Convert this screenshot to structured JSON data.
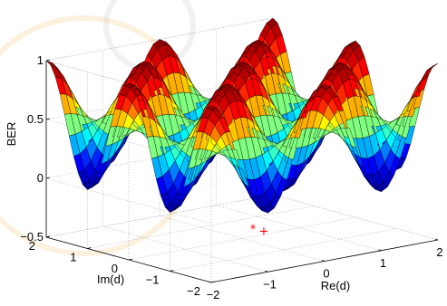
{
  "chart_data": {
    "type": "surface",
    "title": "",
    "xlabel": "Re(d)",
    "ylabel": "Im(d)",
    "zlabel": "BER",
    "xlim": [
      -2,
      2
    ],
    "ylim": [
      -2,
      2
    ],
    "zlim": [
      -0.5,
      1
    ],
    "xticks": [
      "−2",
      "−1",
      "0",
      "1",
      "2"
    ],
    "yticks": [
      "−2",
      "−1",
      "0",
      "1",
      "2"
    ],
    "zticks": [
      "−0.5",
      "0",
      "0.5",
      "1"
    ],
    "colormap": [
      "#00008f",
      "#0000ff",
      "#00ffff",
      "#ffff00",
      "#ff0000",
      "#800000"
    ],
    "surface_function": "0.5 + 0.5*cos(pi*x)*cos(pi*y)",
    "grid": true,
    "markers": [
      {
        "symbol": "*",
        "color": "#ff0000"
      },
      {
        "symbol": "+",
        "color": "#ff0000"
      }
    ]
  }
}
